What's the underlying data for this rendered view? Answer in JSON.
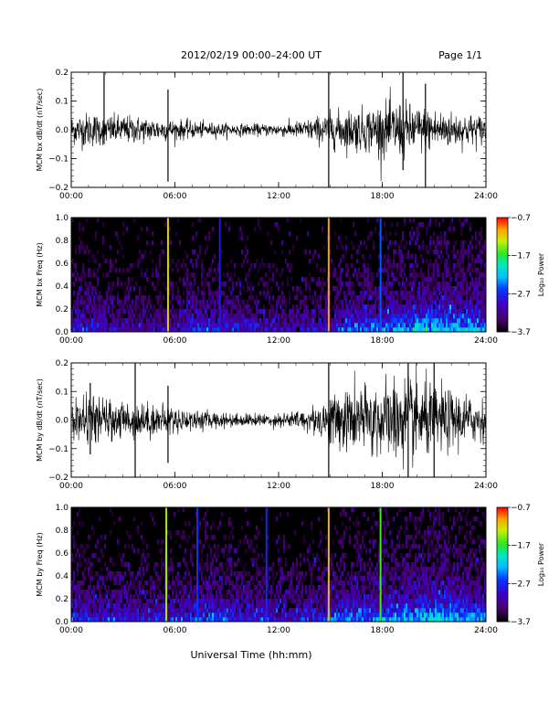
{
  "header": {
    "title": "2012/02/19  00:00–24:00 UT",
    "page": "Page 1/1"
  },
  "footer": {
    "xlabel": "Universal Time (hh:mm)"
  },
  "chart_data": [
    {
      "type": "line",
      "name": "bx-timeseries",
      "title": "",
      "ylabel": "MCM bx dB/dt (nT/sec)",
      "xlabel": "",
      "xlim": [
        0,
        24
      ],
      "ylim": [
        -0.2,
        0.2
      ],
      "x_tick_labels": [
        "00:00",
        "06:00",
        "12:00",
        "18:00",
        "24:00"
      ],
      "x_ticks": [
        0,
        6,
        12,
        18,
        24
      ],
      "y_ticks": [
        -0.2,
        -0.1,
        0.0,
        0.1,
        0.2
      ],
      "y_tick_labels": [
        "−0.2",
        "−0.1",
        "0.0",
        "0.1",
        "0.2"
      ],
      "grid": false,
      "x": [
        0,
        1,
        2,
        3,
        4,
        5,
        6,
        7,
        8,
        9,
        10,
        11,
        12,
        13,
        14,
        15,
        16,
        17,
        18,
        19,
        20,
        21,
        22,
        23,
        24
      ],
      "envelope": [
        0.05,
        0.06,
        0.05,
        0.05,
        0.045,
        0.04,
        0.035,
        0.03,
        0.025,
        0.022,
        0.02,
        0.02,
        0.022,
        0.028,
        0.04,
        0.06,
        0.07,
        0.075,
        0.09,
        0.1,
        0.08,
        0.075,
        0.06,
        0.055,
        0.05
      ],
      "spikes": [
        {
          "x": 1.9,
          "min": -0.05,
          "max": 0.21
        },
        {
          "x": 5.6,
          "min": -0.18,
          "max": 0.14
        },
        {
          "x": 14.9,
          "min": -0.2,
          "max": 0.21
        },
        {
          "x": 19.2,
          "min": -0.14,
          "max": 0.21
        },
        {
          "x": 20.5,
          "min": -0.21,
          "max": 0.16
        }
      ]
    },
    {
      "type": "heatmap",
      "name": "bx-spectrogram",
      "title": "",
      "ylabel": "MCM bx Freq (Hz)",
      "xlim": [
        0,
        24
      ],
      "ylim": [
        0.0,
        1.0
      ],
      "x_tick_labels": [
        "00:00",
        "06:00",
        "12:00",
        "18:00",
        "24:00"
      ],
      "x_ticks": [
        0,
        6,
        12,
        18,
        24
      ],
      "y_ticks": [
        0.0,
        0.2,
        0.4,
        0.6,
        0.8,
        1.0
      ],
      "y_tick_labels": [
        "0.0",
        "0.2",
        "0.4",
        "0.6",
        "0.8",
        "1.0"
      ],
      "colorbar": {
        "label": "Log₁₀ Power",
        "range": [
          -3.7,
          -0.7
        ],
        "ticks": [
          -0.7,
          -1.7,
          -2.7,
          -3.7
        ],
        "tick_labels": [
          "−0.7",
          "−1.7",
          "−2.7",
          "−3.7"
        ]
      },
      "activity": [
        0.5,
        0.45,
        0.4,
        0.35,
        0.3,
        0.3,
        0.35,
        0.45,
        0.5,
        0.45,
        0.4,
        0.35,
        0.3,
        0.3,
        0.35,
        0.45,
        0.55,
        0.6,
        0.65,
        0.7,
        0.75,
        0.8,
        0.8,
        0.75,
        0.7
      ],
      "bright_lines": [
        {
          "x": 5.6,
          "level": -1.2
        },
        {
          "x": 14.9,
          "level": -1.0
        },
        {
          "x": 17.9,
          "level": -2.5
        },
        {
          "x": 8.6,
          "level": -2.8
        }
      ]
    },
    {
      "type": "line",
      "name": "by-timeseries",
      "title": "",
      "ylabel": "MCM by dB/dt (nT/sec)",
      "xlabel": "",
      "xlim": [
        0,
        24
      ],
      "ylim": [
        -0.2,
        0.2
      ],
      "x_tick_labels": [
        "00:00",
        "06:00",
        "12:00",
        "18:00",
        "24:00"
      ],
      "x_ticks": [
        0,
        6,
        12,
        18,
        24
      ],
      "y_ticks": [
        -0.2,
        -0.1,
        0.0,
        0.1,
        0.2
      ],
      "y_tick_labels": [
        "−0.2",
        "−0.1",
        "0.0",
        "0.1",
        "0.2"
      ],
      "grid": false,
      "x": [
        0,
        1,
        2,
        3,
        4,
        5,
        6,
        7,
        8,
        9,
        10,
        11,
        12,
        13,
        14,
        15,
        16,
        17,
        18,
        19,
        20,
        21,
        22,
        23,
        24
      ],
      "envelope": [
        0.06,
        0.08,
        0.07,
        0.065,
        0.06,
        0.055,
        0.045,
        0.035,
        0.03,
        0.025,
        0.022,
        0.022,
        0.025,
        0.03,
        0.045,
        0.09,
        0.11,
        0.12,
        0.13,
        0.15,
        0.14,
        0.12,
        0.1,
        0.085,
        0.07
      ],
      "spikes": [
        {
          "x": 1.1,
          "min": -0.12,
          "max": 0.13
        },
        {
          "x": 3.7,
          "min": -0.21,
          "max": 0.2
        },
        {
          "x": 5.6,
          "min": -0.15,
          "max": 0.12
        },
        {
          "x": 14.9,
          "min": -0.21,
          "max": 0.21
        },
        {
          "x": 19.5,
          "min": -0.2,
          "max": 0.21
        },
        {
          "x": 21.0,
          "min": -0.21,
          "max": 0.21
        }
      ]
    },
    {
      "type": "heatmap",
      "name": "by-spectrogram",
      "title": "",
      "ylabel": "MCM by Freq (Hz)",
      "xlim": [
        0,
        24
      ],
      "ylim": [
        0.0,
        1.0
      ],
      "x_tick_labels": [
        "00:00",
        "06:00",
        "12:00",
        "18:00",
        "24:00"
      ],
      "x_ticks": [
        0,
        6,
        12,
        18,
        24
      ],
      "y_ticks": [
        0.0,
        0.2,
        0.4,
        0.6,
        0.8,
        1.0
      ],
      "y_tick_labels": [
        "0.0",
        "0.2",
        "0.4",
        "0.6",
        "0.8",
        "1.0"
      ],
      "colorbar": {
        "label": "Log₁₀ Power",
        "range": [
          -3.7,
          -0.7
        ],
        "ticks": [
          -0.7,
          -1.7,
          -2.7,
          -3.7
        ],
        "tick_labels": [
          "−0.7",
          "−1.7",
          "−2.7",
          "−3.7"
        ]
      },
      "activity": [
        0.55,
        0.5,
        0.45,
        0.45,
        0.4,
        0.4,
        0.45,
        0.55,
        0.6,
        0.55,
        0.5,
        0.45,
        0.4,
        0.4,
        0.45,
        0.55,
        0.6,
        0.65,
        0.7,
        0.75,
        0.8,
        0.8,
        0.8,
        0.75,
        0.7
      ],
      "bright_lines": [
        {
          "x": 5.5,
          "level": -1.4
        },
        {
          "x": 14.9,
          "level": -1.1
        },
        {
          "x": 17.9,
          "level": -1.6
        },
        {
          "x": 7.3,
          "level": -2.6
        },
        {
          "x": 11.3,
          "level": -2.7
        }
      ]
    }
  ]
}
